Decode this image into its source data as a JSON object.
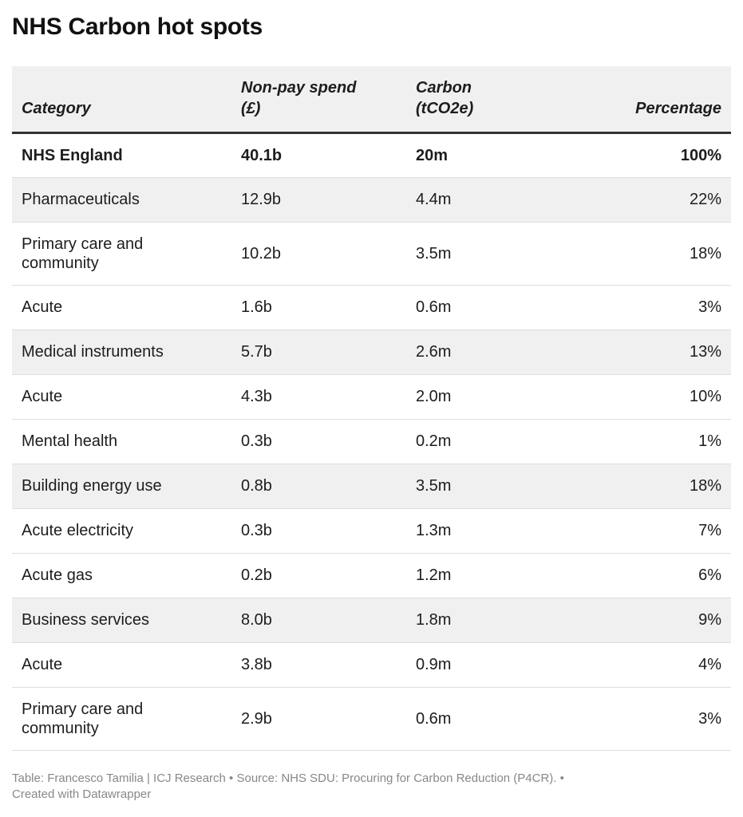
{
  "title": "NHS Carbon hot spots",
  "chart_data": {
    "type": "table",
    "title": "NHS Carbon hot spots",
    "columns": [
      "Category",
      "Non-pay spend (£)",
      "Carbon (tCO2e)",
      "Percentage"
    ],
    "rows": [
      {
        "category": "NHS England",
        "spend": "40.1b",
        "carbon": "20m",
        "pct": "100%"
      },
      {
        "category": "Pharmaceuticals",
        "spend": "12.9b",
        "carbon": "4.4m",
        "pct": "22%"
      },
      {
        "category": "Primary care and community",
        "spend": "10.2b",
        "carbon": "3.5m",
        "pct": "18%"
      },
      {
        "category": "Acute",
        "spend": "1.6b",
        "carbon": "0.6m",
        "pct": "3%"
      },
      {
        "category": "Medical instruments",
        "spend": "5.7b",
        "carbon": "2.6m",
        "pct": "13%"
      },
      {
        "category": "Acute",
        "spend": "4.3b",
        "carbon": "2.0m",
        "pct": "10%"
      },
      {
        "category": "Mental health",
        "spend": "0.3b",
        "carbon": "0.2m",
        "pct": "1%"
      },
      {
        "category": "Building energy use",
        "spend": "0.8b",
        "carbon": "3.5m",
        "pct": "18%"
      },
      {
        "category": "Acute electricity",
        "spend": "0.3b",
        "carbon": "1.3m",
        "pct": "7%"
      },
      {
        "category": "Acute gas",
        "spend": "0.2b",
        "carbon": "1.2m",
        "pct": "6%"
      },
      {
        "category": "Business services",
        "spend": "8.0b",
        "carbon": "1.8m",
        "pct": "9%"
      },
      {
        "category": "Acute",
        "spend": "3.8b",
        "carbon": "0.9m",
        "pct": "4%"
      },
      {
        "category": "Primary care and community",
        "spend": "2.9b",
        "carbon": "0.6m",
        "pct": "3%"
      }
    ]
  },
  "table": {
    "headers": {
      "category": "Category",
      "spend_line1": "Non-pay spend",
      "spend_line2": "(£)",
      "carbon_line1": "Carbon",
      "carbon_line2": "(tCO2e)",
      "percentage": "Percentage"
    }
  },
  "footer": {
    "line1": "Table: Francesco Tamilia | ICJ Research • Source: NHS SDU: Procuring for Carbon Reduction (P4CR). •",
    "line2": "Created with Datawrapper"
  }
}
